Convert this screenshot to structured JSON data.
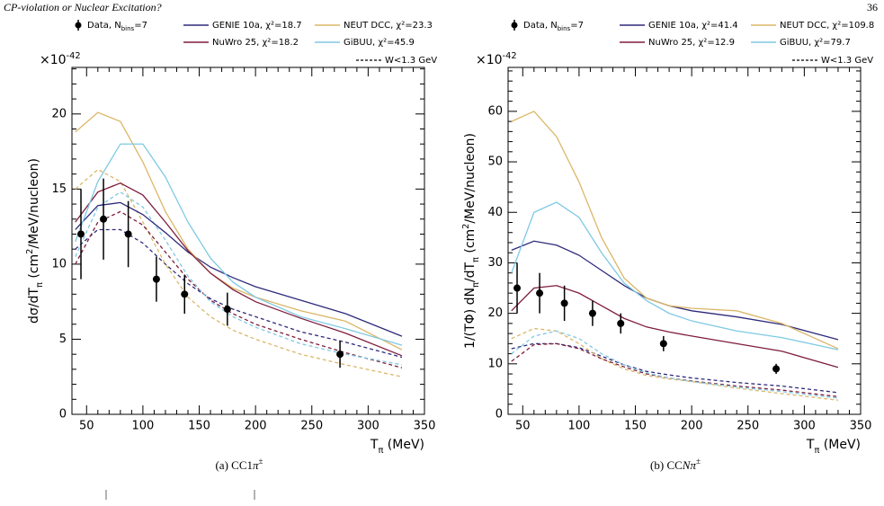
{
  "header": {
    "title": "CP-violation or Nuclear Excitation?",
    "page": "36"
  },
  "chart_data": [
    {
      "type": "line",
      "caption": [
        [
          "(a) CC1",
          ""
        ],
        [
          "π",
          "it"
        ],
        [
          "±",
          "sup"
        ]
      ],
      "y_label": [
        [
          "dσ/dT",
          ""
        ],
        [
          "π",
          "sub"
        ],
        [
          " (cm",
          ""
        ],
        [
          "2",
          "sup"
        ],
        [
          "/MeV/nucleon)",
          ""
        ]
      ],
      "x_label": [
        [
          "T",
          ""
        ],
        [
          "π",
          "sub"
        ],
        [
          " (MeV)",
          ""
        ]
      ],
      "y_exponent": [
        [
          "×10",
          ""
        ],
        [
          "-42",
          "sup"
        ]
      ],
      "xlim": [
        37,
        350
      ],
      "ylim": [
        0,
        23.1
      ],
      "xticks": [
        50,
        100,
        150,
        200,
        250,
        300,
        350
      ],
      "yticks": [
        0,
        5,
        10,
        15,
        20
      ],
      "data": {
        "name": [
          [
            "Data, N",
            ""
          ],
          [
            "bins",
            "sub"
          ],
          [
            "=7",
            ""
          ]
        ],
        "color": "#000000",
        "x": [
          45,
          65,
          87,
          112,
          137,
          175,
          275
        ],
        "values": [
          12,
          13,
          12,
          9,
          8,
          7,
          4
        ],
        "errors": [
          3,
          2.7,
          2.2,
          1.5,
          1.3,
          1.1,
          0.9
        ]
      },
      "x": [
        40,
        60,
        80,
        100,
        120,
        140,
        160,
        180,
        200,
        240,
        280,
        330
      ],
      "series": [
        {
          "name": "GENIE 10a, χ²=18.7",
          "color": "#2e2a7a",
          "values": [
            12.3,
            13.9,
            14.1,
            13.3,
            12.1,
            10.8,
            9.8,
            9.1,
            8.5,
            7.6,
            6.7,
            5.2
          ]
        },
        {
          "name": "NEUT DCC, χ²=23.3",
          "color": "#dcb768",
          "values": [
            18.8,
            20.1,
            19.5,
            16.8,
            13.5,
            11,
            9.4,
            8.4,
            7.8,
            6.9,
            6.2,
            4.3
          ]
        },
        {
          "name": "NuWro 25, χ²=18.2",
          "color": "#7e1d3c",
          "values": [
            12.8,
            14.8,
            15.4,
            14.6,
            12.8,
            10.9,
            9.4,
            8.3,
            7.5,
            6.4,
            5.4,
            3.9
          ]
        },
        {
          "name": "GiBUU, χ²=45.9",
          "color": "#7fc9e4",
          "values": [
            11.5,
            15.5,
            18,
            18,
            15.8,
            12.8,
            10.4,
            8.8,
            7.8,
            6.5,
            5.7,
            4.6
          ]
        }
      ],
      "dashed_legend": "W<1.3 GeV",
      "dashed_series": [
        {
          "color": "#2e2a7a",
          "values": [
            11,
            12.3,
            12.3,
            11.4,
            10,
            8.7,
            7.7,
            7,
            6.5,
            5.5,
            4.8,
            3.8
          ]
        },
        {
          "color": "#dcb768",
          "values": [
            15,
            16.3,
            15.5,
            12.8,
            10,
            7.8,
            6.5,
            5.6,
            5,
            4,
            3.3,
            2.5
          ]
        },
        {
          "color": "#7e1d3c",
          "values": [
            10,
            12.8,
            13.5,
            12.6,
            10.8,
            9,
            7.6,
            6.7,
            6,
            5,
            4.1,
            3.1
          ]
        },
        {
          "color": "#7fc9e4",
          "values": [
            10.5,
            13.8,
            14.8,
            13.8,
            11.6,
            9.2,
            7.5,
            6.5,
            5.8,
            4.7,
            4,
            3.3
          ]
        }
      ]
    },
    {
      "type": "line",
      "caption": [
        [
          "(b) CC",
          ""
        ],
        [
          "Nπ",
          "it"
        ],
        [
          "±",
          "sup"
        ]
      ],
      "y_label": [
        [
          "1/(TΦ) dN",
          ""
        ],
        [
          "π",
          "sub"
        ],
        [
          "/dT",
          ""
        ],
        [
          "π",
          "sub"
        ],
        [
          " (cm",
          ""
        ],
        [
          "2",
          "sup"
        ],
        [
          "/MeV/nucleon)",
          ""
        ]
      ],
      "x_label": [
        [
          "T",
          ""
        ],
        [
          "π",
          "sub"
        ],
        [
          " (MeV)",
          ""
        ]
      ],
      "y_exponent": [
        [
          "×10",
          ""
        ],
        [
          "-42",
          "sup"
        ]
      ],
      "xlim": [
        37,
        350
      ],
      "ylim": [
        0,
        68.7
      ],
      "xticks": [
        50,
        100,
        150,
        200,
        250,
        300,
        350
      ],
      "yticks": [
        0,
        10,
        20,
        30,
        40,
        50,
        60
      ],
      "data": {
        "name": [
          [
            "Data, N",
            ""
          ],
          [
            "bins",
            "sub"
          ],
          [
            "=7",
            ""
          ]
        ],
        "color": "#000000",
        "x": [
          45,
          65,
          87,
          112,
          137,
          175,
          275
        ],
        "values": [
          25,
          24,
          22,
          20,
          18,
          14,
          9
        ],
        "errors": [
          5,
          4,
          3.5,
          2.5,
          2,
          1.5,
          1
        ]
      },
      "x": [
        40,
        60,
        80,
        100,
        120,
        140,
        160,
        180,
        200,
        240,
        280,
        330
      ],
      "series": [
        {
          "name": "GENIE 10a, χ²=41.4",
          "color": "#2e2a7a",
          "values": [
            32.5,
            34.3,
            33.5,
            31.5,
            28.5,
            25.5,
            23,
            21.5,
            20.5,
            19.3,
            17.8,
            14.8
          ]
        },
        {
          "name": "NEUT DCC, χ²=109.8",
          "color": "#dcb768",
          "values": [
            58,
            60,
            55,
            46,
            35,
            27,
            23,
            21.5,
            21,
            20.5,
            18,
            13
          ]
        },
        {
          "name": "NuWro 25, χ²=12.9",
          "color": "#7e1d3c",
          "values": [
            20.5,
            25,
            25.5,
            24,
            21.5,
            19,
            17.3,
            16.3,
            15.5,
            14,
            12.5,
            9.3
          ]
        },
        {
          "name": "GiBUU, χ²=79.7",
          "color": "#7fc9e4",
          "values": [
            28,
            40,
            42,
            39,
            32,
            26,
            22.5,
            20,
            18.5,
            16.5,
            15.2,
            12.8
          ]
        }
      ],
      "dashed_legend": "W<1.3 GeV",
      "dashed_series": [
        {
          "color": "#2e2a7a",
          "values": [
            13,
            14,
            14,
            13.2,
            11.5,
            9.8,
            8.5,
            7.8,
            7.2,
            6.3,
            5.6,
            4.3
          ]
        },
        {
          "color": "#dcb768",
          "values": [
            15,
            17,
            16.5,
            14,
            11,
            9,
            7.7,
            7,
            6.5,
            5.2,
            4.1,
            2.8
          ]
        },
        {
          "color": "#7e1d3c",
          "values": [
            10.5,
            13.8,
            14,
            13,
            11,
            9.4,
            8,
            7.2,
            6.6,
            5.6,
            4.8,
            3.5
          ]
        },
        {
          "color": "#7fc9e4",
          "values": [
            12,
            15.5,
            16.5,
            15,
            12,
            9.8,
            8.2,
            7.2,
            6.5,
            5.4,
            4.5,
            3.2
          ]
        }
      ]
    }
  ]
}
